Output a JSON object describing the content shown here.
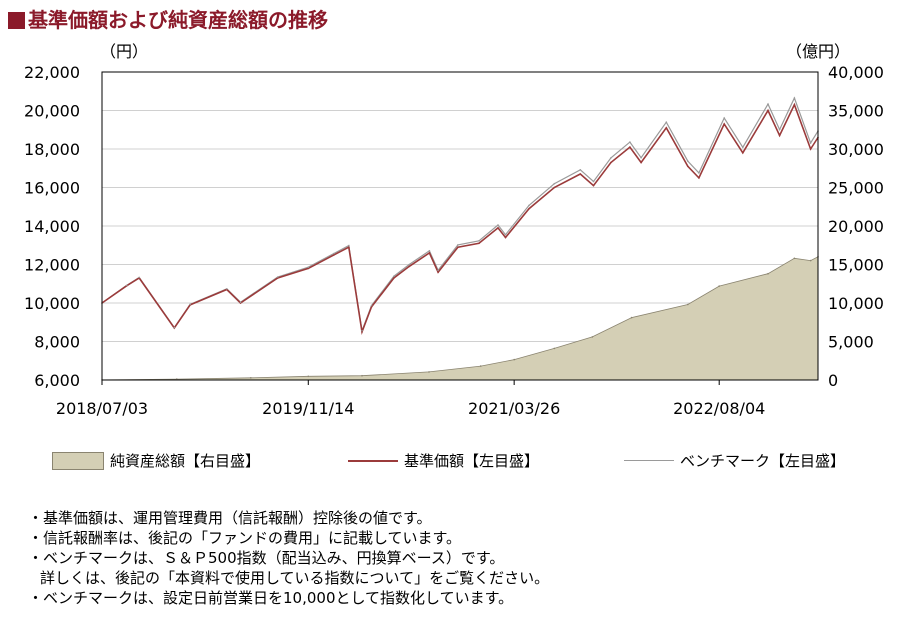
{
  "title": "■基準価額および純資産総額の推移",
  "left_unit": "（円）",
  "right_unit": "（億円）",
  "legend": {
    "aum": "純資産総額【右目盛】",
    "nav": "基準価額【左目盛】",
    "bench": "ベンチマーク【左目盛】"
  },
  "notes": [
    "・基準価額は、運用管理費用（信託報酬）控除後の値です。",
    "・信託報酬率は、後記の「ファンドの費用」に記載しています。",
    "・ベンチマークは、Ｓ＆Ｐ500指数（配当込み、円換算ベース）です。",
    "詳しくは、後記の「本資料で使用している指数について」をご覧ください。",
    "・ベンチマークは、設定日前営業日を10,000として指数化しています。"
  ],
  "colors": {
    "nav": "#9b3b3b",
    "bench": "#9a9a9a",
    "aum_fill": "#d4cfb5",
    "aum_stroke": "#8a8470",
    "title": "#8b1a2a"
  },
  "chart_data": {
    "type": "line",
    "x_tick_labels": [
      "2018/07/03",
      "2019/11/14",
      "2021/03/26",
      "2022/08/04"
    ],
    "x_range": [
      "2018/07/03",
      "2023/03/31"
    ],
    "left_axis": {
      "ylim": [
        6000,
        22000
      ],
      "ticks": [
        "6,000",
        "8,000",
        "10,000",
        "12,000",
        "14,000",
        "16,000",
        "18,000",
        "20,000",
        "22,000"
      ]
    },
    "right_axis": {
      "ylim": [
        0,
        40000
      ],
      "ticks": [
        "0",
        "5,000",
        "10,000",
        "15,000",
        "20,000",
        "25,000",
        "30,000",
        "35,000",
        "40,000"
      ]
    },
    "grid": true,
    "series": [
      {
        "name": "基準価額【左目盛】",
        "axis": "left",
        "x": [
          "2018/07/03",
          "2018/09/01",
          "2018/10/01",
          "2018/12/25",
          "2019/02/01",
          "2019/05/01",
          "2019/06/03",
          "2019/09/01",
          "2019/11/14",
          "2020/01/15",
          "2020/02/20",
          "2020/03/23",
          "2020/04/15",
          "2020/06/08",
          "2020/07/15",
          "2020/09/02",
          "2020/09/23",
          "2020/11/10",
          "2020/12/31",
          "2021/02/15",
          "2021/03/05",
          "2021/05/01",
          "2021/07/01",
          "2021/09/02",
          "2021/10/04",
          "2021/11/15",
          "2021/12/31",
          "2022/01/27",
          "2022/03/29",
          "2022/05/20",
          "2022/06/16",
          "2022/08/16",
          "2022/09/30",
          "2022/11/30",
          "2022/12/28",
          "2023/02/02",
          "2023/03/13",
          "2023/03/31"
        ],
        "values": [
          10000,
          10900,
          11300,
          8700,
          9900,
          10700,
          10000,
          11300,
          11800,
          12500,
          12900,
          8500,
          9800,
          11300,
          11900,
          12600,
          11600,
          12900,
          13100,
          13900,
          13400,
          14900,
          16000,
          16700,
          16100,
          17300,
          18100,
          17300,
          19100,
          17100,
          16500,
          19300,
          17800,
          20000,
          18700,
          20300,
          18000,
          18600
        ]
      },
      {
        "name": "ベンチマーク【左目盛】",
        "axis": "left",
        "x": [
          "2018/07/03",
          "2018/09/01",
          "2018/10/01",
          "2018/12/25",
          "2019/02/01",
          "2019/05/01",
          "2019/06/03",
          "2019/09/01",
          "2019/11/14",
          "2020/01/15",
          "2020/02/20",
          "2020/03/23",
          "2020/04/15",
          "2020/06/08",
          "2020/07/15",
          "2020/09/02",
          "2020/09/23",
          "2020/11/10",
          "2020/12/31",
          "2021/02/15",
          "2021/03/05",
          "2021/05/01",
          "2021/07/01",
          "2021/09/02",
          "2021/10/04",
          "2021/11/15",
          "2021/12/31",
          "2022/01/27",
          "2022/03/29",
          "2022/05/20",
          "2022/06/16",
          "2022/08/16",
          "2022/09/30",
          "2022/11/30",
          "2022/12/28",
          "2023/02/02",
          "2023/03/13",
          "2023/03/31"
        ],
        "values": [
          10000,
          10920,
          11330,
          8720,
          9930,
          10740,
          10040,
          11350,
          11860,
          12570,
          12980,
          8560,
          9870,
          11390,
          12000,
          12710,
          11700,
          13020,
          13230,
          14050,
          13550,
          15070,
          16200,
          16920,
          16310,
          17540,
          18360,
          17550,
          19390,
          17370,
          16760,
          19610,
          18090,
          20330,
          19010,
          20650,
          18310,
          18930
        ]
      },
      {
        "name": "純資産総額【右目盛】",
        "axis": "right",
        "x": [
          "2018/07/03",
          "2018/12/31",
          "2019/06/28",
          "2019/11/14",
          "2020/03/23",
          "2020/09/01",
          "2021/01/04",
          "2021/03/26",
          "2021/07/01",
          "2021/10/01",
          "2022/01/04",
          "2022/05/20",
          "2022/08/04",
          "2022/11/30",
          "2023/02/02",
          "2023/03/13",
          "2023/03/31"
        ],
        "values": [
          10,
          120,
          280,
          480,
          560,
          1050,
          1800,
          2650,
          4100,
          5600,
          8100,
          9800,
          12200,
          13800,
          15800,
          15500,
          16000
        ]
      }
    ]
  }
}
